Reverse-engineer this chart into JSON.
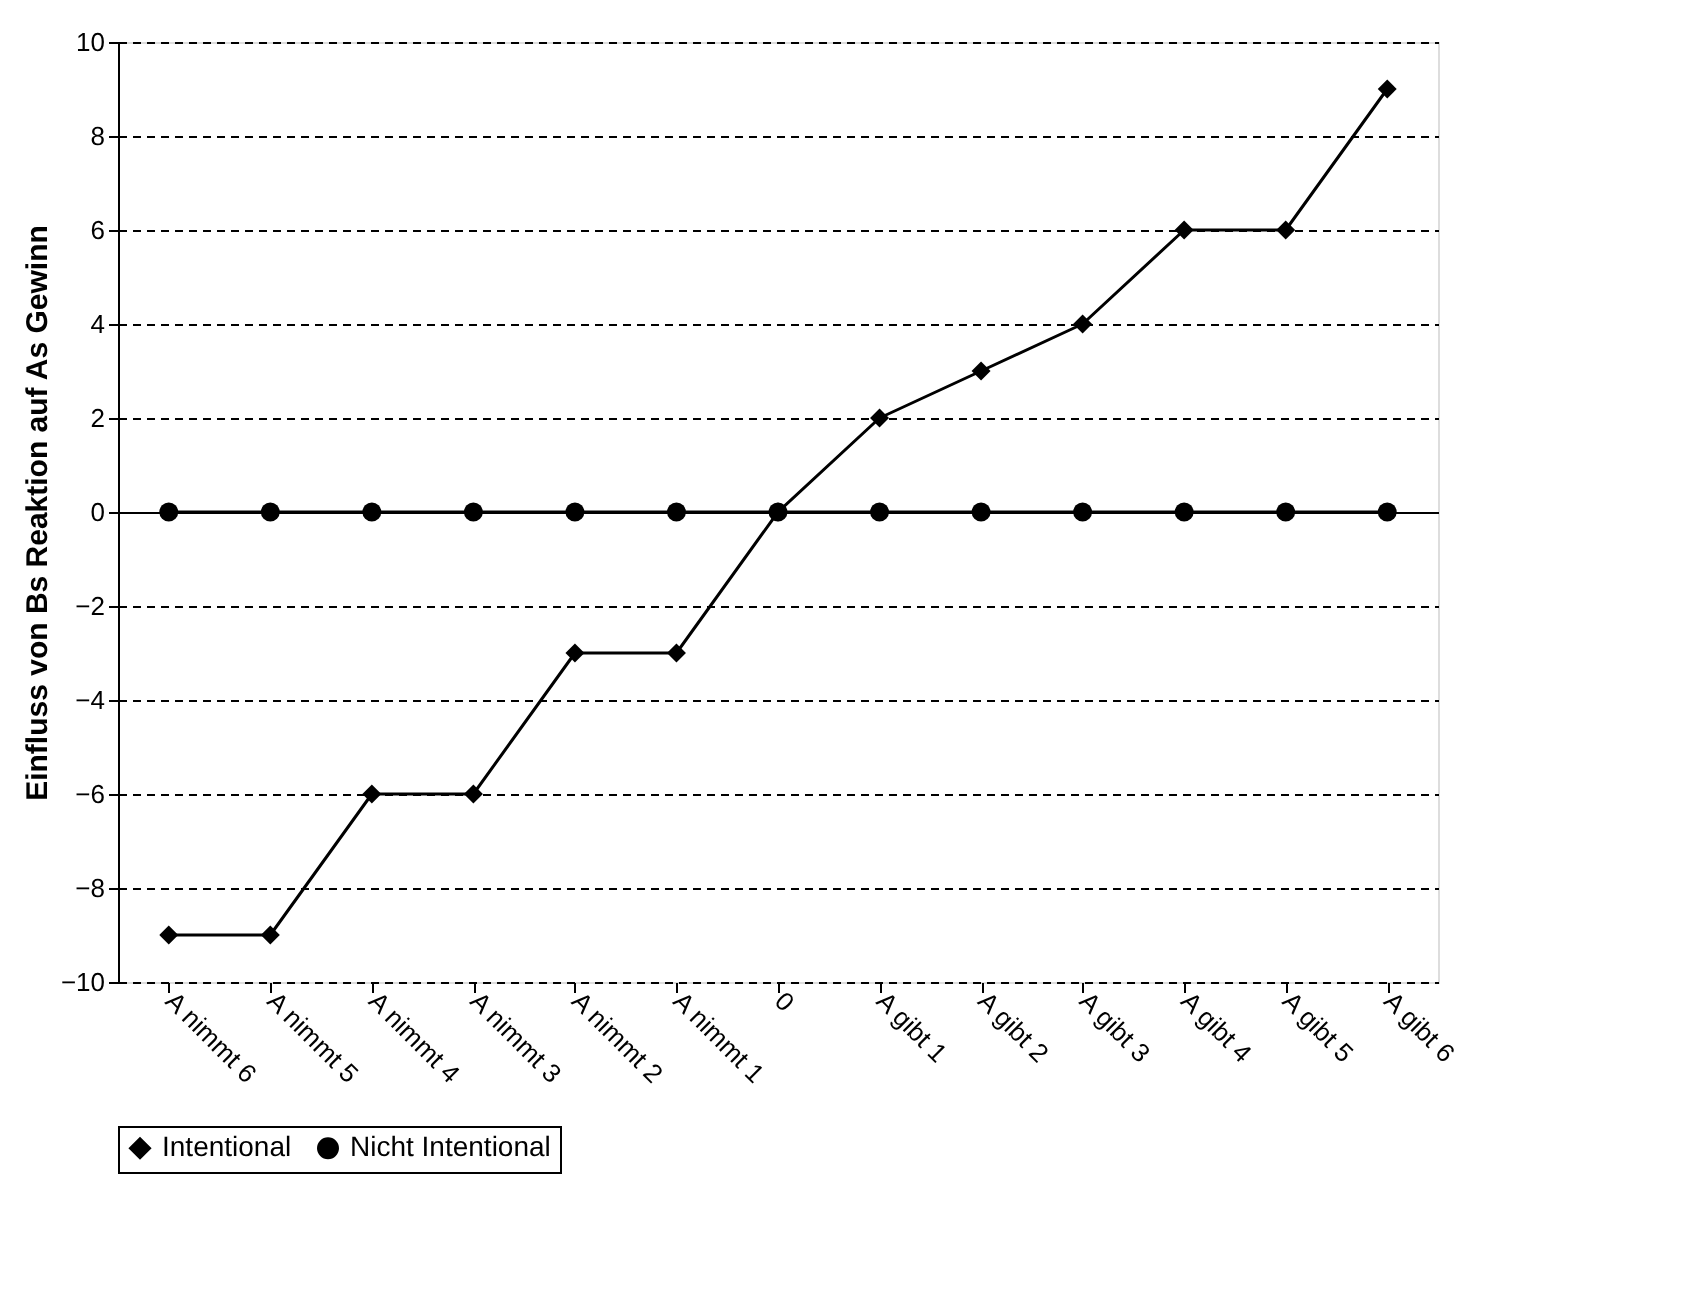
{
  "chart_data": {
    "type": "line",
    "ylabel": "Einfluss von Bs Reaktion auf As Gewinn",
    "categories": [
      "A nimmt 6",
      "A nimmt 5",
      "A nimmt 4",
      "A nimmt 3",
      "A nimmt 2",
      "A nimmt 1",
      "0",
      "A gibt 1",
      "A gibt 2",
      "A gibt 3",
      "A gibt 4",
      "A gibt 5",
      "A gibt 6"
    ],
    "series": [
      {
        "name": "Intentional",
        "color": "#000000",
        "marker": "diamond",
        "values": [
          -9,
          -9,
          -6,
          -6,
          -3,
          -3,
          0,
          2,
          3,
          4,
          6,
          6,
          9
        ]
      },
      {
        "name": "Nicht Intentional",
        "color": "#000000",
        "marker": "circle",
        "values": [
          0,
          0,
          0,
          0,
          0,
          0,
          0,
          0,
          0,
          0,
          0,
          0,
          0
        ]
      }
    ],
    "ylim": [
      -10,
      10
    ],
    "yticks": [
      -10,
      -8,
      -6,
      -4,
      -2,
      0,
      2,
      4,
      6,
      8,
      10
    ],
    "grid": "y",
    "legend": "bottom",
    "line_style": "solid"
  }
}
